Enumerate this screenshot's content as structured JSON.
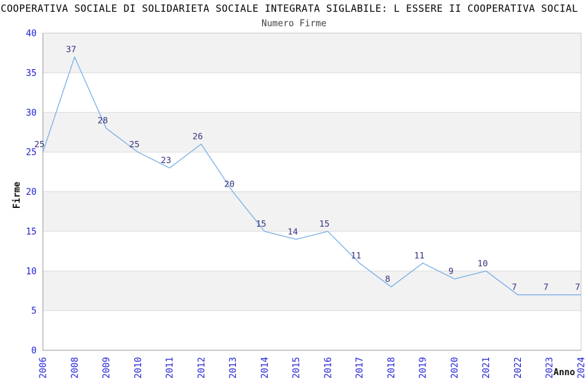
{
  "chart_data": {
    "type": "line",
    "title": "COOPERATIVA SOCIALE DI SOLIDARIETA SOCIALE INTEGRATA SIGLABILE: L ESSERE II COOPERATIVA SOCIAL",
    "subtitle": "Numero Firme",
    "xlabel": "Anno",
    "ylabel": "Firme",
    "categories": [
      "2006",
      "2008",
      "2009",
      "2010",
      "2011",
      "2012",
      "2013",
      "2014",
      "2015",
      "2016",
      "2017",
      "2018",
      "2019",
      "2020",
      "2021",
      "2022",
      "2023",
      "2024"
    ],
    "values": [
      25,
      37,
      28,
      25,
      23,
      26,
      20,
      15,
      14,
      15,
      11,
      8,
      11,
      9,
      10,
      7,
      7,
      7
    ],
    "ylim": [
      0,
      40
    ],
    "ytick_step": 5,
    "yticks": [
      0,
      5,
      10,
      15,
      20,
      25,
      30,
      35,
      40
    ],
    "grid": true,
    "legend_position": "none",
    "colors": {
      "line": "#7cb1e6",
      "tick_label": "#2323d6",
      "data_label": "#333380",
      "band": "#f2f2f2",
      "grid_line": "#dcdcdc",
      "plot_border": "#c8c8c8",
      "axis_line": "#9a9a9a",
      "title": "#000000",
      "subtitle": "#444444"
    }
  }
}
